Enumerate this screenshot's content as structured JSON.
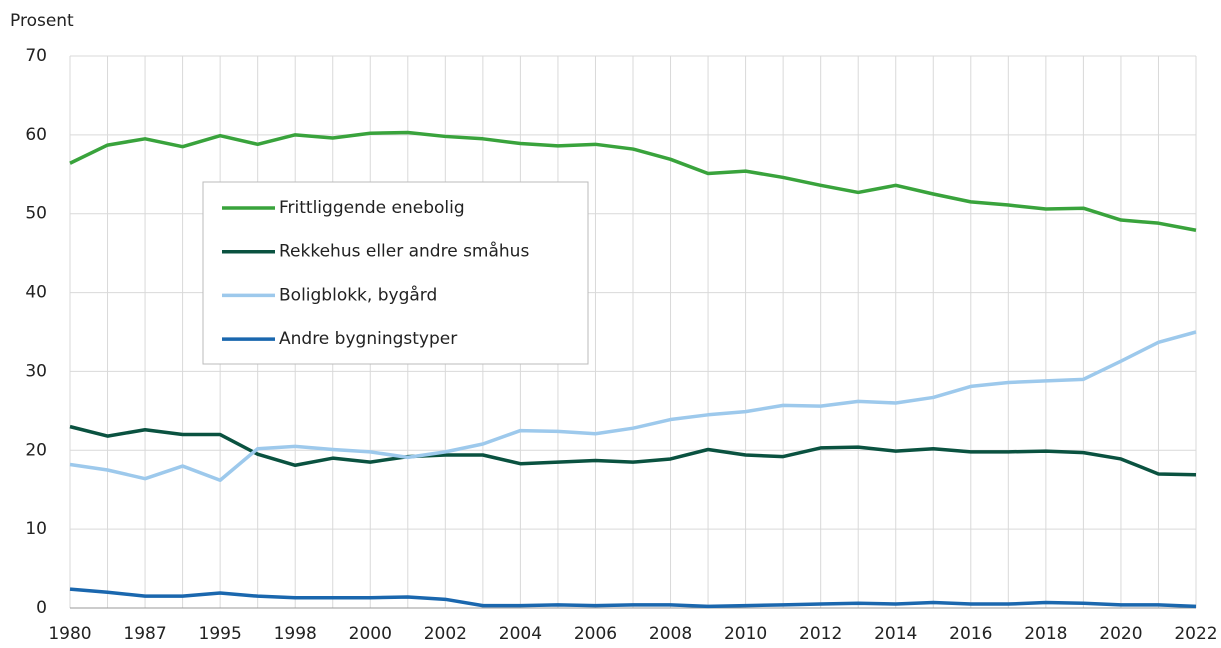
{
  "chart_data": {
    "type": "line",
    "y_axis_title": "Prosent",
    "categories": [
      "1980",
      null,
      "1987",
      null,
      "1995",
      null,
      "1998",
      null,
      "2000",
      null,
      "2002",
      null,
      "2004",
      null,
      "2006",
      null,
      "2008",
      null,
      "2010",
      null,
      "2012",
      null,
      "2014",
      null,
      "2016",
      null,
      "2018",
      null,
      "2020",
      null,
      "2022"
    ],
    "series": [
      {
        "name": "Frittliggende enebolig",
        "color": "#39a33c",
        "values": [
          56.4,
          58.7,
          59.5,
          58.5,
          59.9,
          58.8,
          60.0,
          59.6,
          60.2,
          60.3,
          59.8,
          59.5,
          58.9,
          58.6,
          58.8,
          58.2,
          56.9,
          55.1,
          55.4,
          54.6,
          53.6,
          52.7,
          53.6,
          52.5,
          51.5,
          51.1,
          50.6,
          50.7,
          49.2,
          48.8,
          47.9
        ]
      },
      {
        "name": "Rekkehus eller andre småhus",
        "color": "#0a5240",
        "values": [
          23.0,
          21.8,
          22.6,
          22.0,
          22.0,
          19.5,
          18.1,
          19.0,
          18.5,
          19.2,
          19.4,
          19.4,
          18.3,
          18.5,
          18.7,
          18.5,
          18.9,
          20.1,
          19.4,
          19.2,
          20.3,
          20.4,
          19.9,
          20.2,
          19.8,
          19.8,
          19.9,
          19.7,
          18.9,
          17.0,
          16.9
        ]
      },
      {
        "name": "Boligblokk, bygård",
        "color": "#9dc9ec",
        "values": [
          18.2,
          17.5,
          16.4,
          18.0,
          16.2,
          20.2,
          20.5,
          20.1,
          19.8,
          19.1,
          19.8,
          20.8,
          22.5,
          22.4,
          22.1,
          22.8,
          23.9,
          24.5,
          24.9,
          25.7,
          25.6,
          26.2,
          26.0,
          26.7,
          28.1,
          28.6,
          28.8,
          29.0,
          31.3,
          33.7,
          35.0
        ]
      },
      {
        "name": "Andre bygningstyper",
        "color": "#1a67ae",
        "values": [
          2.4,
          2.0,
          1.5,
          1.5,
          1.9,
          1.5,
          1.3,
          1.3,
          1.3,
          1.4,
          1.1,
          0.3,
          0.3,
          0.4,
          0.3,
          0.4,
          0.4,
          0.2,
          0.3,
          0.4,
          0.5,
          0.6,
          0.5,
          0.7,
          0.5,
          0.5,
          0.7,
          0.6,
          0.4,
          0.4,
          0.2
        ]
      }
    ],
    "ylim": [
      0,
      70
    ],
    "yticks": [
      0,
      10,
      20,
      30,
      40,
      50,
      60,
      70
    ],
    "grid": true
  }
}
